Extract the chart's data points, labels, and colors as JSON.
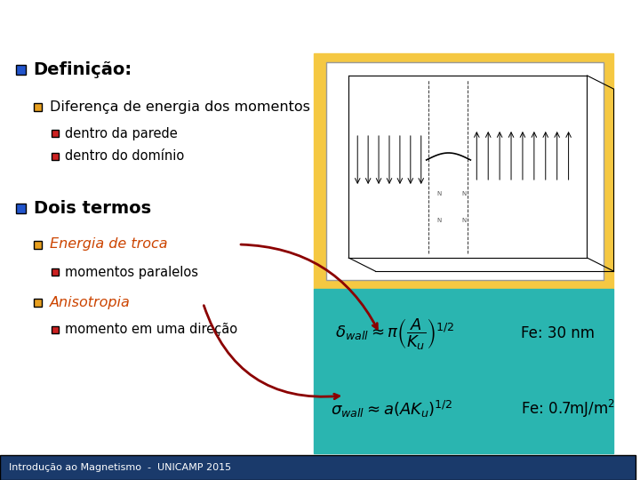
{
  "bg_color": "#ffffff",
  "footer_bg": "#1a3a6b",
  "footer_text": "Introdução ao Magnetismo  -  UNICAMP 2015",
  "footer_text_color": "#ffffff",
  "bullet_blue": "#2255cc",
  "bullet_orange": "#e8a020",
  "bullet_red": "#cc2222",
  "orange_box_color": "#f5c842",
  "teal_box_color": "#2ab5b0",
  "title1": "Definição:",
  "sub1": "Diferença de energia dos momentos",
  "sub1a": "dentro da parede",
  "sub1b": "dentro do domínio",
  "title2": "Dois termos",
  "sub2a": "Energia de troca",
  "sub2a1": "momentos paralelos",
  "sub2b": "Anisotropia",
  "sub2b1": "momento em uma direção",
  "orange_color_text": "#cc4400",
  "eq1": "$\\delta_{wall} \\approx \\pi\\left(\\dfrac{A}{K_u}\\right)^{1/2}$",
  "eq1_fe": "Fe: 30 nm",
  "eq2": "$\\sigma_{wall} \\approx a\\left(AK_u\\right)^{1/2}$",
  "eq2_fe": "Fe: 0.7mJ/m$^2$"
}
